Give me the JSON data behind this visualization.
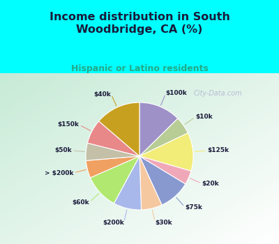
{
  "title": "Income distribution in South\nWoodbridge, CA (%)",
  "subtitle": "Hispanic or Latino residents",
  "background_cyan": "#00ffff",
  "watermark": "City-Data.com",
  "labels": [
    "$100k",
    "$10k",
    "$125k",
    "$20k",
    "$75k",
    "$30k",
    "$200k",
    "$60k",
    "> $200k",
    "$50k",
    "$150k",
    "$40k"
  ],
  "values": [
    12,
    5,
    11,
    4,
    9,
    6,
    8,
    10,
    5,
    5,
    7,
    13
  ],
  "colors": [
    "#9e91c8",
    "#b8cc96",
    "#f2ec78",
    "#f0a8b8",
    "#8899d0",
    "#f5c8a0",
    "#a8b8ea",
    "#b0e870",
    "#f0a060",
    "#c4c0a8",
    "#e88888",
    "#c8a020"
  ],
  "startangle": 90,
  "figsize": [
    4.0,
    3.5
  ],
  "dpi": 100
}
